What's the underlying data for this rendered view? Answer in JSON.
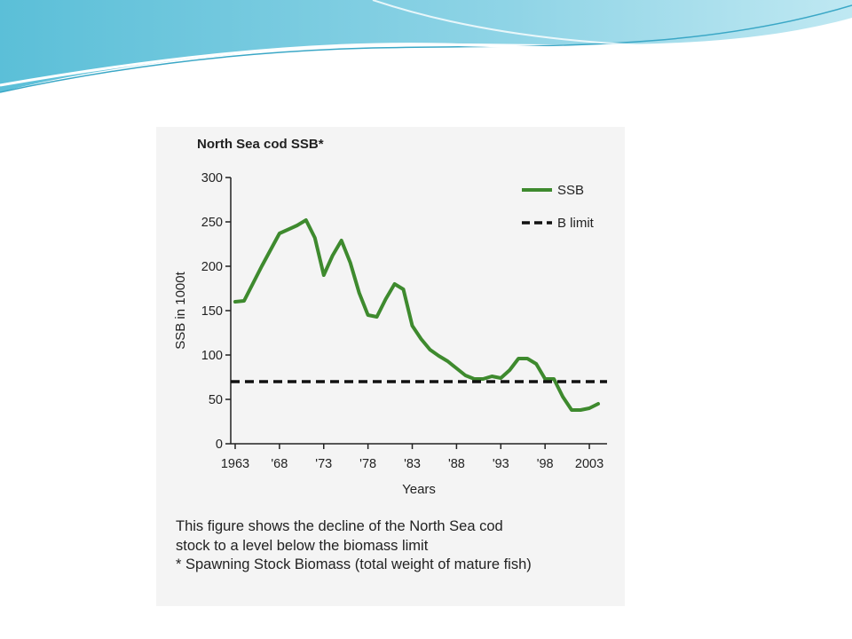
{
  "figure": {
    "caption": [
      "This figure shows the decline of the North Sea cod",
      "stock to a level below the biomass limit",
      "* Spawning Stock Biomass (total weight of mature fish)"
    ]
  },
  "chart_data": {
    "type": "line",
    "title": "North Sea cod SSB*",
    "xlabel": "Years",
    "ylabel": "SSB in 1000t",
    "xlim": [
      1962.5,
      2005
    ],
    "ylim": [
      0,
      300
    ],
    "x_ticks": [
      1963,
      1968,
      1973,
      1978,
      1983,
      1988,
      1993,
      1998,
      2003
    ],
    "x_tick_labels": [
      "1963",
      "'68",
      "'73",
      "'78",
      "'83",
      "'88",
      "'93",
      "'98",
      "2003"
    ],
    "y_ticks": [
      0,
      50,
      100,
      150,
      200,
      250,
      300
    ],
    "y_tick_labels": [
      "0",
      "50",
      "100",
      "150",
      "200",
      "250",
      "300"
    ],
    "grid": false,
    "legend_position": "top-right",
    "series": [
      {
        "name": "SSB",
        "color": "#3e8a2e",
        "style": "solid",
        "x": [
          1963,
          1964,
          1966,
          1968,
          1970,
          1971,
          1972,
          1973,
          1974,
          1975,
          1976,
          1977,
          1978,
          1979,
          1980,
          1981,
          1982,
          1983,
          1984,
          1985,
          1986,
          1987,
          1988,
          1989,
          1990,
          1991,
          1992,
          1993,
          1994,
          1995,
          1996,
          1997,
          1998,
          1999,
          2000,
          2001,
          2002,
          2003,
          2004
        ],
        "y": [
          160,
          161,
          200,
          237,
          246,
          252,
          232,
          190,
          212,
          229,
          204,
          170,
          145,
          143,
          163,
          180,
          174,
          133,
          118,
          106,
          99,
          93,
          85,
          77,
          73,
          73,
          76,
          74,
          83,
          96,
          96,
          90,
          73,
          73,
          53,
          38,
          38,
          40,
          45
        ]
      },
      {
        "name": "B limit",
        "color": "#111111",
        "style": "dashed",
        "x": [
          1962.5,
          2005
        ],
        "y": [
          70,
          70
        ]
      }
    ]
  }
}
